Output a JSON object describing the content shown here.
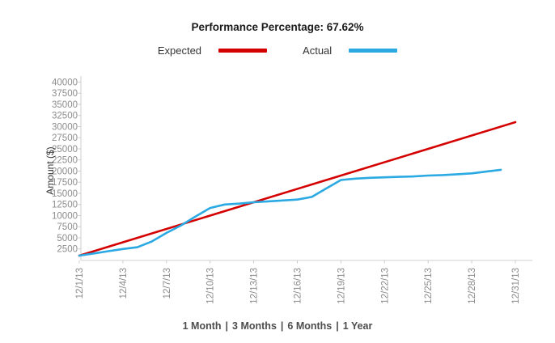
{
  "chart_data": {
    "type": "line",
    "title": "Performance Percentage: 67.62%",
    "performance_percentage": "67.62%",
    "ylabel": "Amount ($)",
    "xlabel": "",
    "ylim": [
      0,
      40000
    ],
    "yticks": [
      2500,
      5000,
      7500,
      10000,
      12500,
      15000,
      17500,
      20000,
      22500,
      25000,
      27500,
      30000,
      32500,
      35000,
      37500,
      40000
    ],
    "xtick_days": [
      1,
      4,
      7,
      10,
      13,
      16,
      19,
      22,
      25,
      28,
      31
    ],
    "xtick_labels": [
      "12/1/13",
      "12/4/13",
      "12/7/13",
      "12/10/13",
      "12/13/13",
      "12/16/13",
      "12/19/13",
      "12/22/13",
      "12/25/13",
      "12/28/13",
      "12/31/13"
    ],
    "grid": false,
    "legend_position": "top",
    "axis_color": "#dddddd",
    "tick_color": "#cccccc",
    "tick_label_color": "#8c8c8c",
    "axis_title_color": "#333333",
    "series": [
      {
        "name": "Expected",
        "color": "#d40000",
        "x": [
          1,
          31
        ],
        "values": [
          1000,
          31000
        ]
      },
      {
        "name": "Actual",
        "color": "#2aa9e2",
        "x": [
          1,
          2,
          3,
          4,
          5,
          6,
          7,
          8,
          9,
          10,
          11,
          12,
          13,
          14,
          15,
          16,
          17,
          18,
          19,
          20,
          21,
          22,
          23,
          24,
          25,
          26,
          27,
          28,
          29,
          30
        ],
        "values": [
          1000,
          1500,
          2000,
          2500,
          2900,
          4200,
          6100,
          7800,
          9800,
          11700,
          12500,
          12700,
          13000,
          13200,
          13400,
          13600,
          14200,
          16100,
          18000,
          18300,
          18500,
          18600,
          18700,
          18800,
          19000,
          19100,
          19300,
          19500,
          19900,
          20300
        ]
      }
    ]
  },
  "footer": {
    "separator": "|",
    "links": [
      "1 Month",
      "3 Months",
      "6 Months",
      "1 Year"
    ]
  }
}
